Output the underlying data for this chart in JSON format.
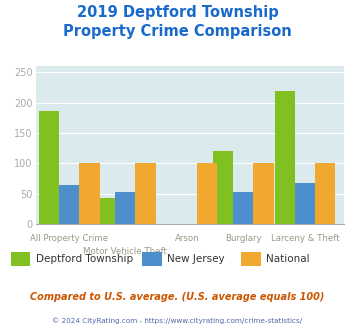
{
  "title": "2019 Deptford Township\nProperty Crime Comparison",
  "categories": [
    "All Property Crime",
    "Motor Vehicle Theft",
    "Arson",
    "Burglary",
    "Larceny & Theft"
  ],
  "series": {
    "Deptford Township": [
      186,
      44,
      0,
      120,
      219
    ],
    "New Jersey": [
      65,
      54,
      0,
      54,
      68
    ],
    "National": [
      100,
      100,
      100,
      100,
      100
    ]
  },
  "colors": {
    "Deptford Township": "#80c020",
    "New Jersey": "#4d8fcc",
    "National": "#f0a830"
  },
  "ylim": [
    0,
    260
  ],
  "yticks": [
    0,
    50,
    100,
    150,
    200,
    250
  ],
  "plot_bg": "#daeaed",
  "outer_bg": "#ffffff",
  "title_color": "#1a6acc",
  "note_text": "Compared to U.S. average. (U.S. average equals 100)",
  "note_color": "#cc5500",
  "footer_text": "© 2024 CityRating.com - https://www.cityrating.com/crime-statistics/",
  "footer_color": "#5566aa",
  "xlabel_color": "#999988",
  "tick_color": "#aaaaaa",
  "grid_color": "#ffffff",
  "legend_label_color": "#333333"
}
